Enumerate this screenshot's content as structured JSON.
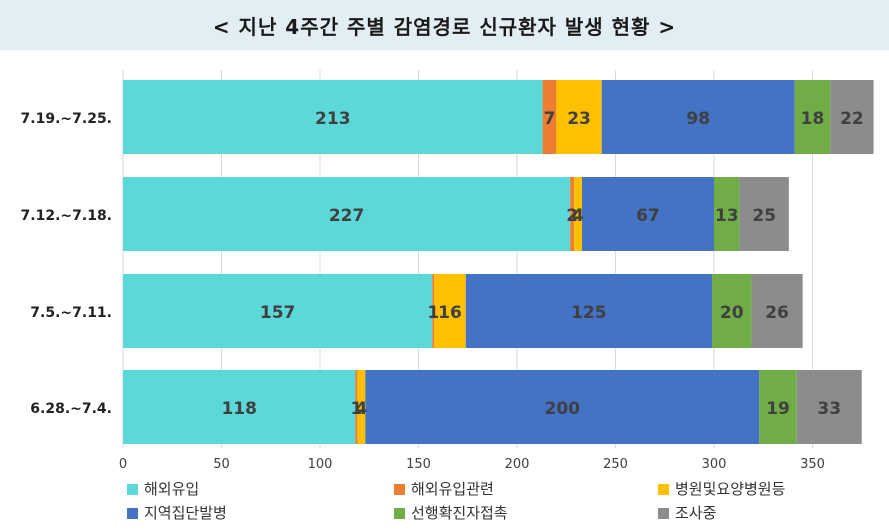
{
  "title": "< 지난 4주간 주별 감염경로 신규환자 발생 현황 >",
  "chart_data": {
    "type": "bar",
    "orientation": "horizontal",
    "stacked": true,
    "categories": [
      "7.19.~7.25.",
      "7.12.~7.18.",
      "7.5.~7.11.",
      "6.28.~7.4."
    ],
    "series": [
      {
        "name": "해외유입",
        "color": "#5dd8d8",
        "values": [
          213,
          227,
          157,
          118
        ]
      },
      {
        "name": "해외유입관련",
        "color": "#ed7d31",
        "values": [
          7,
          2,
          1,
          1
        ]
      },
      {
        "name": "병원및요양병원등",
        "color": "#ffc000",
        "values": [
          23,
          4,
          16,
          4
        ]
      },
      {
        "name": "지역집단발병",
        "color": "#4472c4",
        "values": [
          98,
          67,
          125,
          200
        ]
      },
      {
        "name": "선행확진자접촉",
        "color": "#70ad47",
        "values": [
          18,
          13,
          20,
          19
        ]
      },
      {
        "name": "조사중",
        "color": "#8c8c8c",
        "values": [
          22,
          25,
          26,
          33
        ]
      }
    ],
    "xlim": [
      0,
      380
    ],
    "xticks": [
      0,
      50,
      100,
      150,
      200,
      250,
      300,
      350
    ],
    "grid": true,
    "legend": "bottom"
  }
}
